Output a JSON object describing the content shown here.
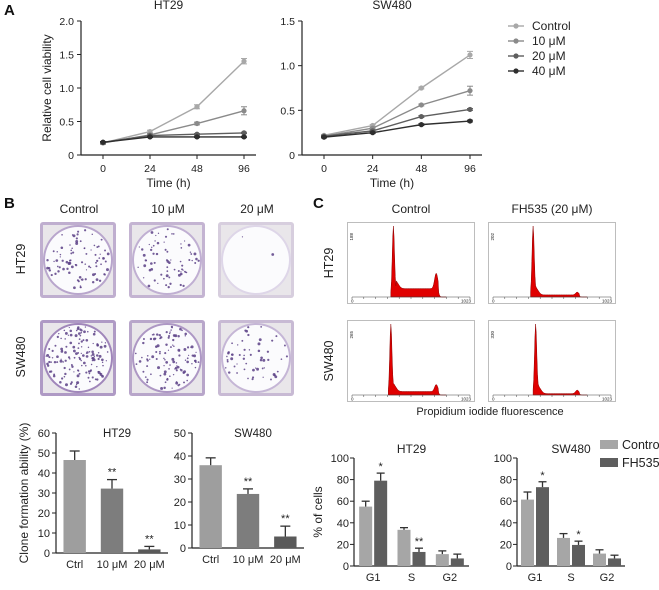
{
  "panels": {
    "A": "A",
    "B": "B",
    "C": "C"
  },
  "chart_data": [
    {
      "id": "A-HT29",
      "type": "line",
      "title": "HT29",
      "xlabel": "Time (h)",
      "ylabel": "Relative cell viability",
      "x": [
        "0",
        "24",
        "48",
        "96"
      ],
      "yticks": [
        "0",
        "0.5",
        "1.0",
        "1.5",
        "2.0"
      ],
      "ylim": [
        0,
        2.0
      ],
      "series": [
        {
          "name": "Control",
          "values": [
            0.18,
            0.35,
            0.72,
            1.4
          ],
          "errors": [
            0.02,
            0.02,
            0.03,
            0.04
          ],
          "color": "#a8a8a8"
        },
        {
          "name": "10 μM",
          "values": [
            0.18,
            0.3,
            0.47,
            0.66
          ],
          "errors": [
            0.02,
            0.02,
            0.02,
            0.06
          ],
          "color": "#8a8a8a"
        },
        {
          "name": "20 μM",
          "values": [
            0.19,
            0.29,
            0.31,
            0.33
          ],
          "errors": [
            0.01,
            0.01,
            0.01,
            0.01
          ],
          "color": "#5e5e5e"
        },
        {
          "name": "40 μM",
          "values": [
            0.19,
            0.27,
            0.27,
            0.27
          ],
          "errors": [
            0.01,
            0.01,
            0.01,
            0.01
          ],
          "color": "#2e2e2e"
        }
      ]
    },
    {
      "id": "A-SW480",
      "type": "line",
      "title": "SW480",
      "xlabel": "Time (h)",
      "ylabel": "",
      "x": [
        "0",
        "24",
        "48",
        "96"
      ],
      "yticks": [
        "0",
        "0.5",
        "1.0",
        "1.5"
      ],
      "ylim": [
        0,
        1.5
      ],
      "legend": [
        "Control",
        "10 μM",
        "20 μM",
        "40 μM"
      ],
      "legend_position": "right",
      "series": [
        {
          "name": "Control",
          "values": [
            0.22,
            0.33,
            0.75,
            1.12
          ],
          "errors": [
            0.01,
            0.01,
            0.01,
            0.04
          ],
          "color": "#a8a8a8"
        },
        {
          "name": "10 μM",
          "values": [
            0.21,
            0.3,
            0.56,
            0.72
          ],
          "errors": [
            0.01,
            0.01,
            0.01,
            0.05
          ],
          "color": "#8a8a8a"
        },
        {
          "name": "20 μM",
          "values": [
            0.21,
            0.27,
            0.43,
            0.51
          ],
          "errors": [
            0.01,
            0.01,
            0.01,
            0.01
          ],
          "color": "#5e5e5e"
        },
        {
          "name": "40 μM",
          "values": [
            0.2,
            0.25,
            0.34,
            0.38
          ],
          "errors": [
            0.01,
            0.01,
            0.01,
            0.01
          ],
          "color": "#2e2e2e"
        }
      ]
    },
    {
      "id": "B-HT29-bar",
      "type": "bar",
      "title": "HT29",
      "ylabel": "Clone formation ability (%)",
      "categories": [
        "Ctrl",
        "10 μM",
        "20 μM"
      ],
      "values": [
        46.5,
        32.2,
        1.8
      ],
      "errors": [
        4.5,
        4.5,
        1.5
      ],
      "significance": [
        "",
        "**",
        "**"
      ],
      "colors": [
        "#9e9e9e",
        "#7d7d7d",
        "#5a5a5a"
      ],
      "yticks": [
        "0",
        "10",
        "20",
        "30",
        "40",
        "50",
        "60"
      ],
      "ylim": [
        0,
        60
      ]
    },
    {
      "id": "B-SW480-bar",
      "type": "bar",
      "title": "SW480",
      "ylabel": "",
      "categories": [
        "Ctrl",
        "10 μM",
        "20 μM"
      ],
      "values": [
        36.0,
        23.5,
        5.0
      ],
      "errors": [
        3.2,
        2.2,
        4.5
      ],
      "significance": [
        "",
        "**",
        "**"
      ],
      "colors": [
        "#9e9e9e",
        "#7d7d7d",
        "#5a5a5a"
      ],
      "yticks": [
        "0",
        "10",
        "20",
        "30",
        "40",
        "50"
      ],
      "ylim": [
        0,
        50
      ]
    },
    {
      "id": "C-HT29-bar",
      "type": "bar",
      "title": "HT29",
      "ylabel": "% of cells",
      "categories": [
        "G1",
        "S",
        "G2"
      ],
      "series": [
        {
          "name": "Control",
          "values": [
            55,
            33.5,
            11
          ],
          "errors": [
            5,
            2,
            3
          ],
          "color": "#a6a6a6"
        },
        {
          "name": "FH535",
          "values": [
            79,
            13,
            7
          ],
          "errors": [
            7,
            3.5,
            4
          ],
          "color": "#5e5e5e"
        }
      ],
      "significance": [
        [
          "",
          "*"
        ],
        [
          "",
          "**"
        ],
        [
          "",
          ""
        ]
      ],
      "yticks": [
        "0",
        "20",
        "40",
        "60",
        "80",
        "100"
      ],
      "ylim": [
        0,
        100
      ]
    },
    {
      "id": "C-SW480-bar",
      "type": "bar",
      "title": "SW480",
      "ylabel": "",
      "categories": [
        "G1",
        "S",
        "G2"
      ],
      "series": [
        {
          "name": "Control",
          "values": [
            61.5,
            26,
            11.5
          ],
          "errors": [
            7,
            4,
            3.5
          ],
          "color": "#a6a6a6"
        },
        {
          "name": "FH535",
          "values": [
            73,
            19.5,
            7
          ],
          "errors": [
            5,
            3.5,
            3
          ],
          "color": "#5e5e5e"
        }
      ],
      "significance": [
        [
          "",
          "*"
        ],
        [
          "",
          "*"
        ],
        [
          "",
          ""
        ]
      ],
      "yticks": [
        "0",
        "20",
        "40",
        "60",
        "80",
        "100"
      ],
      "ylim": [
        0,
        100
      ],
      "legend": [
        "Control",
        "FH535"
      ],
      "legend_position": "right"
    }
  ],
  "colony": {
    "columns": [
      "Control",
      "10 μM",
      "20 μM"
    ],
    "rows": [
      "HT29",
      "SW480"
    ],
    "colony_density": [
      [
        0.55,
        0.45,
        0.01
      ],
      [
        0.9,
        0.7,
        0.35
      ]
    ],
    "stain_color": "#5b3f86"
  },
  "flow": {
    "columns": [
      "Control",
      "FH535 (20 μM)"
    ],
    "rows": [
      "HT29",
      "SW480"
    ],
    "xlabel": "Propidium iodide fluorescence",
    "x_min_label": "0",
    "x_max_label": "1023",
    "y_max_labels": [
      [
        "188",
        "202"
      ],
      [
        "265",
        "330"
      ]
    ],
    "fill_color": "#e00000"
  }
}
